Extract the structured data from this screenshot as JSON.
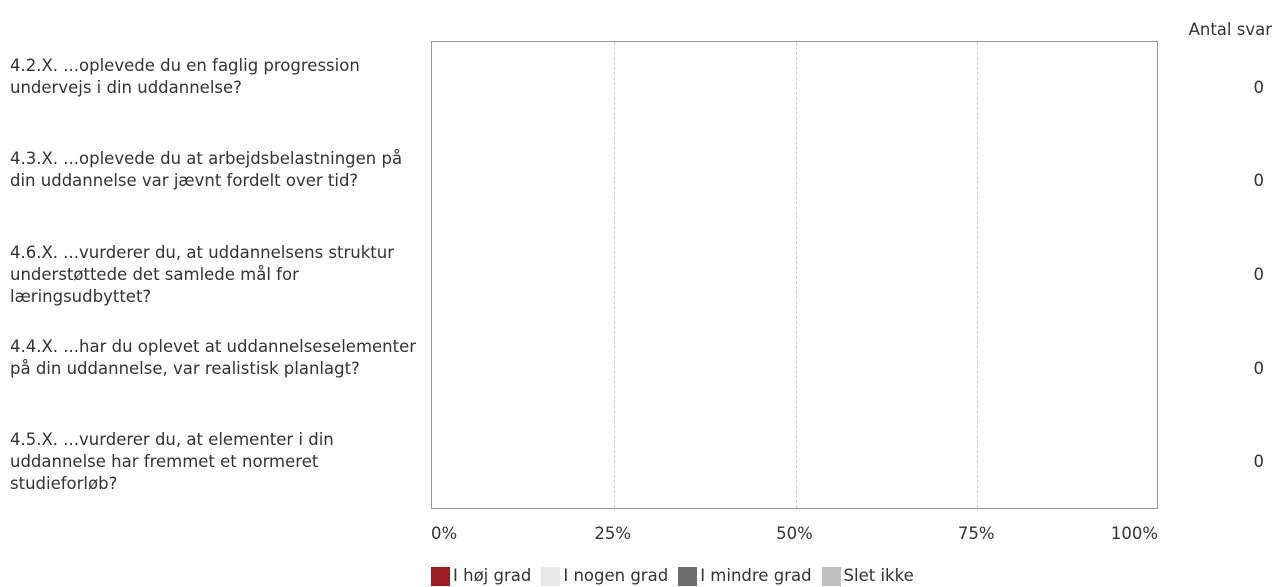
{
  "chart_data": {
    "type": "bar",
    "orientation": "horizontal",
    "stacked": true,
    "categories": [
      "4.2.X. ...oplevede du en faglig progression undervejs i din uddannelse?",
      "4.3.X. ...oplevede du at arbejdsbelastningen på din uddannelse var jævnt fordelt over tid?",
      "4.6.X. ...vurderer du, at uddannelsens struktur understøttede det samlede mål for læringsudbyttet?",
      "4.4.X. ...har du oplevet at uddannelseselementer på din uddannelse, var realistisk planlagt?",
      "4.5.X. ...vurderer du, at elementer i din uddannelse har fremmet et normeret studieforløb?"
    ],
    "series": [
      {
        "name": "I høj grad",
        "color": "#9b1c20",
        "values": [
          0,
          0,
          0,
          0,
          0
        ]
      },
      {
        "name": "I nogen grad",
        "color": "#e8e8e8",
        "values": [
          0,
          0,
          0,
          0,
          0
        ]
      },
      {
        "name": "I mindre grad",
        "color": "#6e6e6e",
        "values": [
          0,
          0,
          0,
          0,
          0
        ]
      },
      {
        "name": "Slet ikke",
        "color": "#c0c0c0",
        "values": [
          0,
          0,
          0,
          0,
          0
        ]
      }
    ],
    "counts_header": "Antal svar",
    "counts": [
      "0",
      "0",
      "0",
      "0",
      "0"
    ],
    "x_ticks": [
      "0%",
      "25%",
      "50%",
      "75%",
      "100%"
    ],
    "xlim": [
      0,
      100
    ],
    "grid": true,
    "legend_position": "bottom"
  }
}
